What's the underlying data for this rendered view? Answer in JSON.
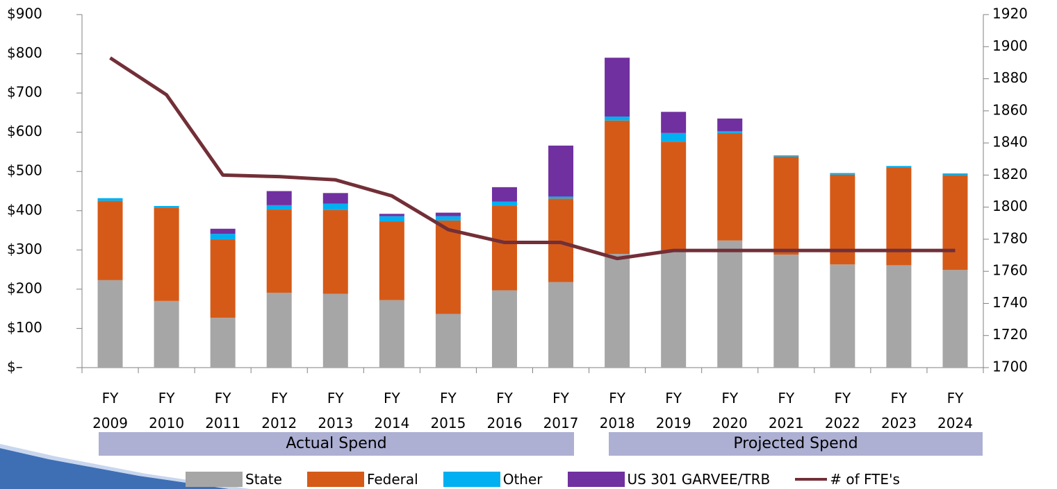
{
  "chart_data": {
    "type": "bar",
    "stacked": true,
    "categories": [
      "FY 2009",
      "FY 2010",
      "FY 2011",
      "FY 2012",
      "FY 2013",
      "FY 2014",
      "FY 2015",
      "FY 2016",
      "FY 2017",
      "FY 2018",
      "FY 2019",
      "FY 2020",
      "FY 2021",
      "FY 2022",
      "FY 2023",
      "FY 2024"
    ],
    "series": [
      {
        "name": "State",
        "color": "#a6a6a6",
        "values": [
          223,
          170,
          127,
          191,
          188,
          172,
          137,
          197,
          218,
          290,
          297,
          324,
          288,
          263,
          261,
          249
        ]
      },
      {
        "name": "Federal",
        "color": "#d55a18",
        "values": [
          202,
          238,
          200,
          212,
          214,
          201,
          238,
          216,
          213,
          340,
          279,
          274,
          250,
          229,
          249,
          242
        ]
      },
      {
        "name": "Other",
        "color": "#00b0f0",
        "values": [
          7,
          4,
          14,
          11,
          16,
          13,
          11,
          10,
          5,
          10,
          22,
          5,
          3,
          4,
          4,
          4
        ]
      },
      {
        "name": "US 301 GARVEE/TRB",
        "color": "#7030a0",
        "values": [
          0,
          0,
          13,
          36,
          27,
          6,
          9,
          37,
          130,
          150,
          54,
          32,
          0,
          0,
          0,
          0
        ]
      },
      {
        "name": "# of FTE's",
        "color": "#722f37",
        "type": "line",
        "axis": "y2",
        "values": [
          1893,
          1870,
          1820,
          1819,
          1817,
          1807,
          1786,
          1778,
          1778,
          1768,
          1773,
          1773,
          1773,
          1773,
          1773,
          1773
        ]
      }
    ],
    "ylim": [
      0,
      900
    ],
    "yticks": [
      {
        "value": 0,
        "label": "$–"
      },
      {
        "value": 100,
        "label": "$100"
      },
      {
        "value": 200,
        "label": "$200"
      },
      {
        "value": 300,
        "label": "$300"
      },
      {
        "value": 400,
        "label": "$400"
      },
      {
        "value": 500,
        "label": "$500"
      },
      {
        "value": 600,
        "label": "$600"
      },
      {
        "value": 700,
        "label": "$700"
      },
      {
        "value": 800,
        "label": "$800"
      },
      {
        "value": 900,
        "label": "$900"
      }
    ],
    "y2lim": [
      1700,
      1920
    ],
    "y2ticks": [
      1700,
      1720,
      1740,
      1760,
      1780,
      1800,
      1820,
      1840,
      1860,
      1880,
      1900,
      1920
    ],
    "grid": false,
    "annotations": [
      "Actual Spend",
      "Projected Spend"
    ],
    "legend": "bottom"
  }
}
